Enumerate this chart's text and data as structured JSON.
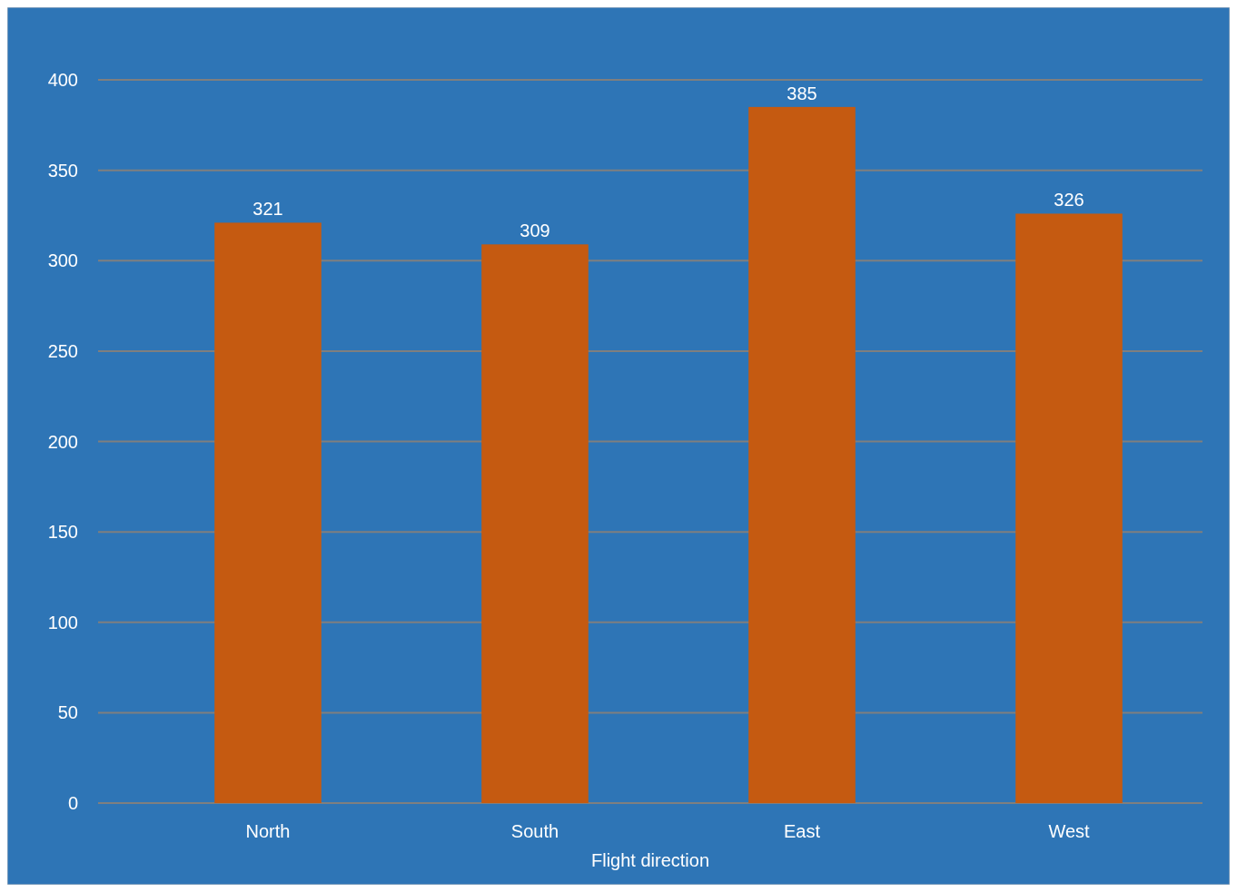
{
  "chart_data": {
    "type": "bar",
    "xlabel": "Flight direction",
    "categories": [
      "North",
      "South",
      "East",
      "West"
    ],
    "values": [
      321,
      309,
      385,
      326
    ],
    "color": "#c55a11",
    "ylim": [
      0,
      400
    ],
    "yticks": [
      0,
      50,
      100,
      150,
      200,
      250,
      300,
      350,
      400
    ],
    "grid": true,
    "data_labels": true
  }
}
